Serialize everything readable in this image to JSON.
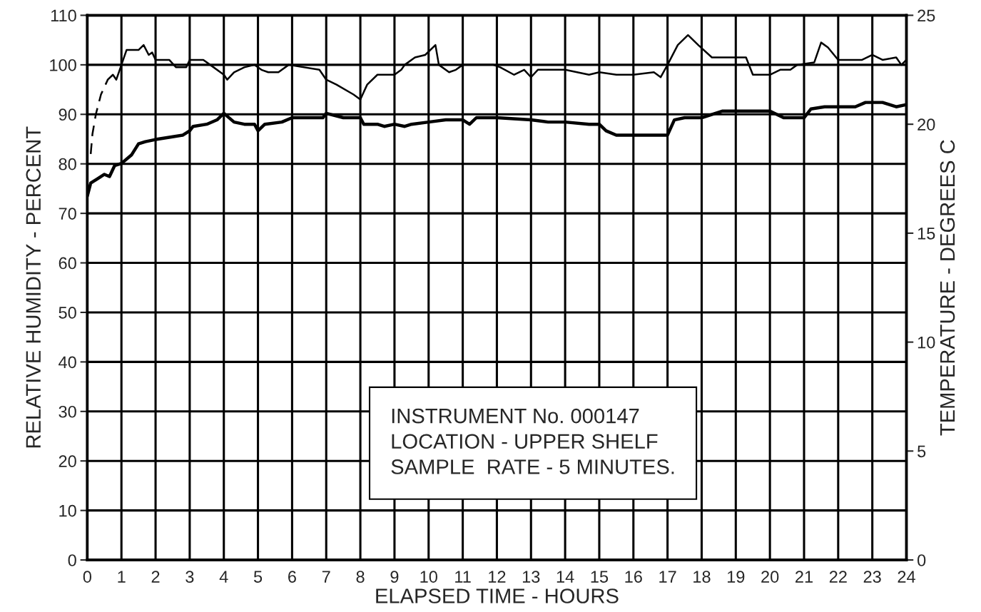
{
  "chart_data": {
    "type": "line",
    "xlabel": "ELAPSED TIME - HOURS",
    "ylabel": "RELATIVE HUMIDITY - PERCENT",
    "y2label": "TEMPERATURE - DEGREES C",
    "xlim": [
      0,
      24
    ],
    "xticks": [
      0,
      1,
      2,
      3,
      4,
      5,
      6,
      7,
      8,
      9,
      10,
      11,
      12,
      13,
      14,
      15,
      16,
      17,
      18,
      19,
      20,
      21,
      22,
      23,
      24
    ],
    "ylim": [
      0,
      110
    ],
    "yticks": [
      0,
      10,
      20,
      30,
      40,
      50,
      60,
      70,
      80,
      90,
      100,
      110
    ],
    "y2lim": [
      0,
      25
    ],
    "y2ticks": [
      0,
      5,
      10,
      15,
      20,
      25
    ],
    "grid": true,
    "annotations": [
      "INSTRUMENT No. 000147\nLOCATION - UPPER SHELF\nSAMPLE  RATE - 5 MINUTES."
    ],
    "series": [
      {
        "color": "#000000",
        "line_style": "dashed",
        "x": [
          0.1,
          0.15,
          0.25,
          0.4,
          0.6
        ],
        "values": [
          82,
          86,
          90,
          94,
          97
        ]
      },
      {
        "color": "#000000",
        "line_style": "solid",
        "x": [
          0.6,
          0.75,
          0.85,
          1.0,
          1.15,
          1.5,
          1.65,
          1.8,
          1.9,
          2.0,
          2.4,
          2.6,
          2.9,
          3.0,
          3.4,
          3.6,
          4.0,
          4.1,
          4.3,
          4.6,
          4.9,
          5.1,
          5.3,
          5.6,
          5.9,
          6.8,
          7.0,
          7.3,
          7.8,
          8.0,
          8.2,
          8.5,
          9.0,
          9.2,
          9.3,
          9.6,
          9.9,
          10.2,
          10.3,
          10.6,
          10.8,
          11.0,
          11.9,
          12.1,
          12.5,
          12.8,
          13.0,
          13.2,
          14.0,
          14.7,
          15.0,
          15.5,
          16.0,
          16.6,
          16.8,
          17.0,
          17.3,
          17.6,
          17.9,
          18.3,
          19.3,
          19.5,
          20.0,
          20.3,
          20.6,
          20.8,
          21.3,
          21.5,
          21.7,
          22.0,
          22.7,
          23.0,
          23.3,
          23.7,
          23.85,
          24.0
        ],
        "values": [
          97,
          98,
          97,
          100,
          103,
          103,
          104,
          102,
          102.5,
          101,
          101,
          99.5,
          99.5,
          101,
          101,
          100,
          98,
          97,
          98.5,
          99.5,
          100,
          99,
          98.5,
          98.5,
          100,
          99,
          97,
          96,
          94,
          93,
          96,
          98,
          98,
          99,
          100,
          101.5,
          102,
          104,
          100,
          98.5,
          99,
          100,
          100,
          99.5,
          98,
          99,
          97.5,
          99,
          99,
          98,
          98.5,
          98,
          98,
          98.5,
          97.5,
          100,
          104,
          106,
          104,
          101.5,
          101.5,
          98,
          98,
          99,
          99,
          100,
          100.5,
          104.5,
          103.5,
          101,
          101,
          102,
          101,
          101.5,
          100,
          101
        ]
      },
      {
        "color": "#000000",
        "line_style": "solid",
        "axis": "y2",
        "x": [
          0,
          0.1,
          0.3,
          0.5,
          0.65,
          0.8,
          1.0,
          1.3,
          1.5,
          1.7,
          2.0,
          2.4,
          2.8,
          3.0,
          3.1,
          3.5,
          3.8,
          4.0,
          4.3,
          4.6,
          4.9,
          5.0,
          5.2,
          5.7,
          6.0,
          6.9,
          7.0,
          7.5,
          8.0,
          8.1,
          8.5,
          8.7,
          9.0,
          9.3,
          9.5,
          10.0,
          10.5,
          11.0,
          11.2,
          11.4,
          12.0,
          13.0,
          13.5,
          14.0,
          14.7,
          15.0,
          15.2,
          15.5,
          16.5,
          17.0,
          17.2,
          17.5,
          18.0,
          18.6,
          19.5,
          20.0,
          20.4,
          21.0,
          21.2,
          21.6,
          22.5,
          22.8,
          23.3,
          23.5,
          23.7,
          24.0
        ],
        "values": [
          16.7,
          17.3,
          17.5,
          17.7,
          17.6,
          18.1,
          18.2,
          18.6,
          19.1,
          19.2,
          19.3,
          19.4,
          19.5,
          19.7,
          19.9,
          20.0,
          20.2,
          20.5,
          20.1,
          20.0,
          20.0,
          19.7,
          20.0,
          20.1,
          20.3,
          20.3,
          20.5,
          20.3,
          20.3,
          20.0,
          20.0,
          19.9,
          20.0,
          19.9,
          20.0,
          20.1,
          20.2,
          20.2,
          20.0,
          20.3,
          20.3,
          20.2,
          20.1,
          20.1,
          20.0,
          20.0,
          19.7,
          19.5,
          19.5,
          19.5,
          20.2,
          20.3,
          20.3,
          20.6,
          20.6,
          20.6,
          20.3,
          20.3,
          20.7,
          20.8,
          20.8,
          21.0,
          21.0,
          20.9,
          20.8,
          20.9
        ]
      }
    ]
  }
}
